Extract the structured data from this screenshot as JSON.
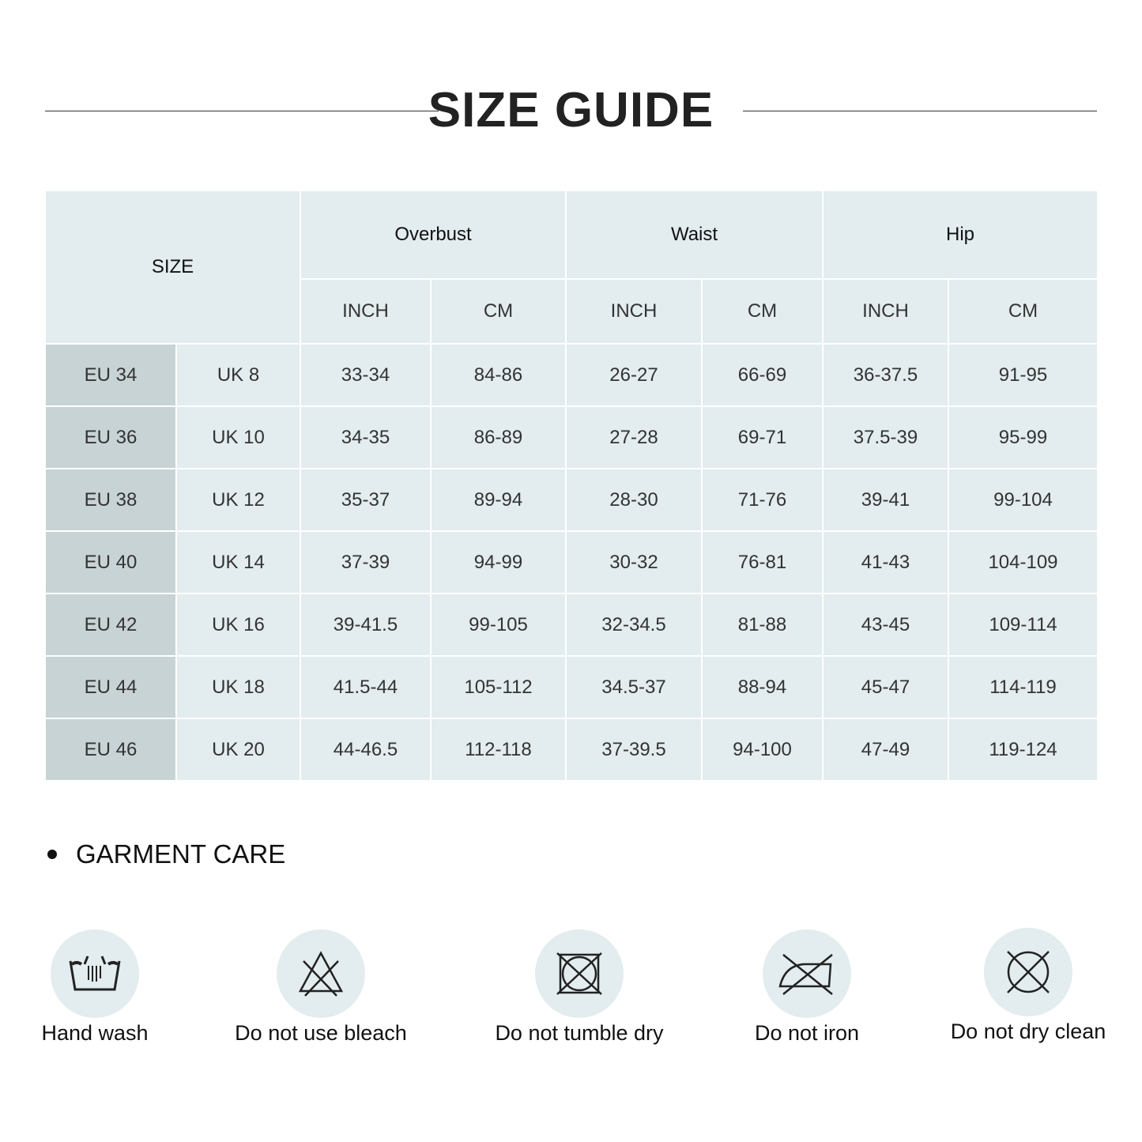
{
  "title": "SIZE GUIDE",
  "table": {
    "size_header": "SIZE",
    "groups": [
      "Overbust",
      "Waist",
      "Hip"
    ],
    "units": [
      "INCH",
      "CM",
      "INCH",
      "CM",
      "INCH",
      "CM"
    ],
    "rows": [
      [
        "EU 34",
        "UK 8",
        "33-34",
        "84-86",
        "26-27",
        "66-69",
        "36-37.5",
        "91-95"
      ],
      [
        "EU 36",
        "UK 10",
        "34-35",
        "86-89",
        "27-28",
        "69-71",
        "37.5-39",
        "95-99"
      ],
      [
        "EU 38",
        "UK 12",
        "35-37",
        "89-94",
        "28-30",
        "71-76",
        "39-41",
        "99-104"
      ],
      [
        "EU 40",
        "UK 14",
        "37-39",
        "94-99",
        "30-32",
        "76-81",
        "41-43",
        "104-109"
      ],
      [
        "EU 42",
        "UK 16",
        "39-41.5",
        "99-105",
        "32-34.5",
        "81-88",
        "43-45",
        "109-114"
      ],
      [
        "EU 44",
        "UK 18",
        "41.5-44",
        "105-112",
        "34.5-37",
        "88-94",
        "45-47",
        "114-119"
      ],
      [
        "EU 46",
        "UK 20",
        "44-46.5",
        "112-118",
        "37-39.5",
        "94-100",
        "47-49",
        "119-124"
      ]
    ]
  },
  "care": {
    "heading": "GARMENT CARE",
    "items": [
      {
        "icon": "hand-wash-icon",
        "label": "Hand wash"
      },
      {
        "icon": "no-bleach-icon",
        "label": "Do not use bleach"
      },
      {
        "icon": "no-tumble-dry-icon",
        "label": "Do not tumble dry"
      },
      {
        "icon": "no-iron-icon",
        "label": "Do not iron"
      },
      {
        "icon": "no-dry-clean-icon",
        "label": "Do not dry clean"
      }
    ]
  },
  "colors": {
    "cell": "#e3ecee",
    "eu_cell": "#c8d3d5",
    "text": "#333333"
  }
}
